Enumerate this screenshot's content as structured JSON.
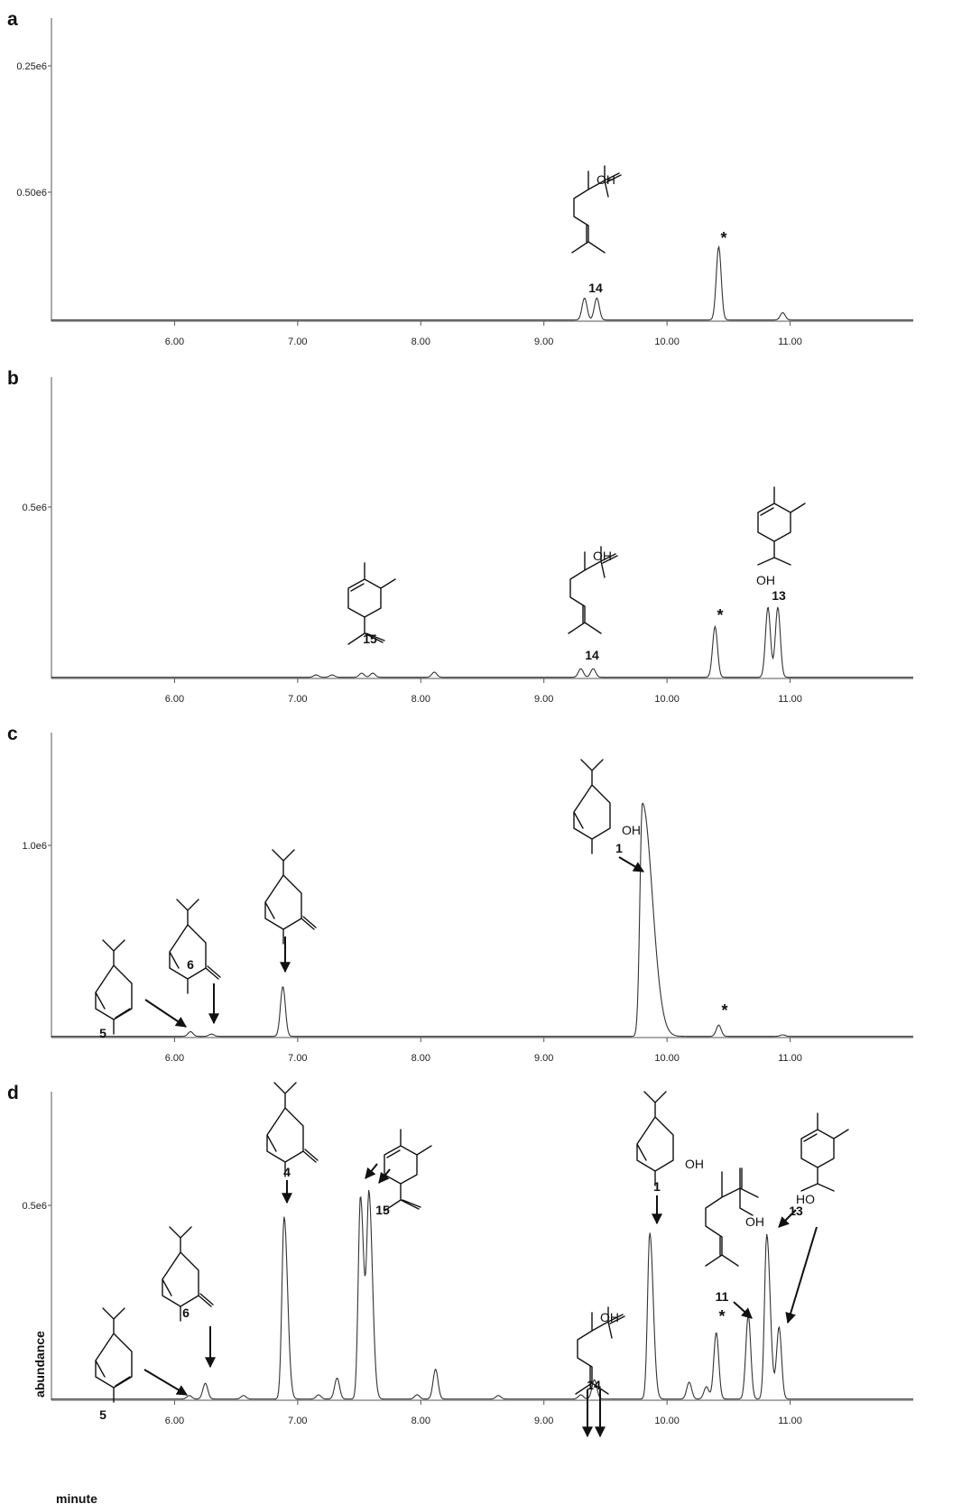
{
  "chart_data": [
    {
      "type": "line",
      "panel_label": "a",
      "xlim": [
        5.0,
        12.0
      ],
      "ylim": [
        0,
        0.62
      ],
      "y_unit": "e6",
      "x_ticks": [
        "6.00",
        "7.00",
        "8.00",
        "9.00",
        "10.00",
        "11.00"
      ],
      "y_ticks": [
        "0.25e6",
        "0.50e6"
      ],
      "peaks": [
        {
          "x": 9.33,
          "y": 0.045,
          "label": "14"
        },
        {
          "x": 9.43,
          "y": 0.045,
          "label": ""
        },
        {
          "x": 10.42,
          "y": 0.15,
          "label": "*"
        },
        {
          "x": 10.94,
          "y": 0.015,
          "label": ""
        }
      ],
      "structures": [
        {
          "label": "14"
        }
      ]
    },
    {
      "type": "line",
      "panel_label": "b",
      "xlim": [
        5.0,
        12.0
      ],
      "ylim": [
        0,
        0.88
      ],
      "y_unit": "e6",
      "x_ticks": [
        "6.00",
        "7.00",
        "8.00",
        "9.00",
        "10.00",
        "11.00"
      ],
      "y_ticks": [
        "0.5e6"
      ],
      "peaks": [
        {
          "x": 7.15,
          "y": 0.007,
          "label": ""
        },
        {
          "x": 7.28,
          "y": 0.007,
          "label": ""
        },
        {
          "x": 7.52,
          "y": 0.012,
          "label": "15"
        },
        {
          "x": 7.61,
          "y": 0.012,
          "label": ""
        },
        {
          "x": 8.11,
          "y": 0.015,
          "label": ""
        },
        {
          "x": 9.3,
          "y": 0.025,
          "label": "14"
        },
        {
          "x": 9.4,
          "y": 0.025,
          "label": ""
        },
        {
          "x": 10.39,
          "y": 0.148,
          "label": "*"
        },
        {
          "x": 10.82,
          "y": 0.205,
          "label": "13"
        },
        {
          "x": 10.9,
          "y": 0.205,
          "label": ""
        }
      ],
      "structures": [
        {
          "label": "15"
        },
        {
          "label": "14"
        },
        {
          "label": "13",
          "text": "OH"
        }
      ]
    },
    {
      "type": "line",
      "panel_label": "c",
      "xlim": [
        5.0,
        12.0
      ],
      "ylim": [
        0,
        1.62
      ],
      "y_unit": "e6",
      "x_ticks": [
        "6.00",
        "7.00",
        "8.00",
        "9.00",
        "10.00",
        "11.00"
      ],
      "y_ticks": [
        "1.0e6"
      ],
      "peaks": [
        {
          "x": 6.13,
          "y": 0.025,
          "label": "5"
        },
        {
          "x": 6.3,
          "y": 0.012,
          "label": "6"
        },
        {
          "x": 6.88,
          "y": 0.265,
          "label": "4"
        },
        {
          "x": 9.8,
          "y": 1.24,
          "label": "1"
        },
        {
          "x": 10.42,
          "y": 0.06,
          "label": "*"
        },
        {
          "x": 10.94,
          "y": 0.008,
          "label": ""
        }
      ],
      "structures": [
        {
          "label": "5"
        },
        {
          "label": "6"
        },
        {
          "label": "4"
        },
        {
          "label": "1",
          "text": "OH"
        }
      ]
    },
    {
      "type": "line",
      "panel_label": "d",
      "xlim": [
        5.0,
        12.0
      ],
      "ylim": [
        0,
        0.88
      ],
      "y_unit": "e6",
      "xlabel": "minute",
      "ylabel": "abundance",
      "x_ticks": [
        "6.00",
        "7.00",
        "8.00",
        "9.00",
        "10.00",
        "11.00"
      ],
      "y_ticks": [
        "0.5e6"
      ],
      "peaks": [
        {
          "x": 6.12,
          "y": 0.01,
          "label": "5"
        },
        {
          "x": 6.25,
          "y": 0.045,
          "label": "6"
        },
        {
          "x": 6.56,
          "y": 0.01,
          "label": ""
        },
        {
          "x": 6.89,
          "y": 0.52,
          "label": "4"
        },
        {
          "x": 7.17,
          "y": 0.012,
          "label": ""
        },
        {
          "x": 7.32,
          "y": 0.06,
          "label": ""
        },
        {
          "x": 7.51,
          "y": 0.58,
          "label": "15"
        },
        {
          "x": 7.58,
          "y": 0.57,
          "label": "15"
        },
        {
          "x": 7.97,
          "y": 0.012,
          "label": ""
        },
        {
          "x": 8.12,
          "y": 0.085,
          "label": ""
        },
        {
          "x": 8.63,
          "y": 0.01,
          "label": ""
        },
        {
          "x": 9.3,
          "y": 0.012,
          "label": "14"
        },
        {
          "x": 9.41,
          "y": 0.055,
          "label": "14"
        },
        {
          "x": 9.86,
          "y": 0.475,
          "label": "1"
        },
        {
          "x": 10.18,
          "y": 0.048,
          "label": ""
        },
        {
          "x": 10.32,
          "y": 0.035,
          "label": ""
        },
        {
          "x": 10.4,
          "y": 0.19,
          "label": "*"
        },
        {
          "x": 10.66,
          "y": 0.24,
          "label": "11"
        },
        {
          "x": 10.81,
          "y": 0.47,
          "label": "13"
        },
        {
          "x": 10.91,
          "y": 0.205,
          "label": "13"
        }
      ],
      "structures": [
        {
          "label": "5"
        },
        {
          "label": "6"
        },
        {
          "label": "4"
        },
        {
          "label": "15"
        },
        {
          "label": "14",
          "text": "OH"
        },
        {
          "label": "1",
          "text": "OH"
        },
        {
          "label": "11",
          "text": "OH"
        },
        {
          "label": "13",
          "text": "HO"
        }
      ]
    }
  ]
}
